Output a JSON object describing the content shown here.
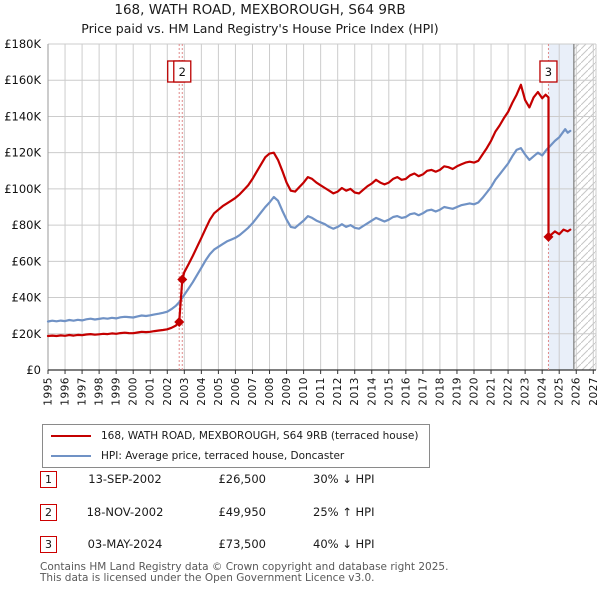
{
  "page": {
    "title1": "168, WATH ROAD, MEXBOROUGH, S64 9RB",
    "title2": "Price paid vs. HM Land Registry's House Price Index (HPI)"
  },
  "chart_data": {
    "type": "line",
    "title": "168, WATH ROAD, MEXBOROUGH, S64 9RB",
    "subtitle": "Price paid vs. HM Land Registry's House Price Index (HPI)",
    "value_units": "GBP thousands",
    "xlim": [
      1995,
      2027.2
    ],
    "ylim": [
      0,
      180
    ],
    "grid": true,
    "x_ticks": [
      1995,
      1996,
      1997,
      1998,
      1999,
      2000,
      2001,
      2002,
      2003,
      2004,
      2005,
      2006,
      2007,
      2008,
      2009,
      2010,
      2011,
      2012,
      2013,
      2014,
      2015,
      2016,
      2017,
      2018,
      2019,
      2020,
      2021,
      2022,
      2023,
      2024,
      2025,
      2026,
      2027
    ],
    "y_ticks": [
      0,
      20,
      40,
      60,
      80,
      100,
      120,
      140,
      160,
      180
    ],
    "y_tick_prefix": "£",
    "y_tick_suffix": "K",
    "colors": {
      "property_line": "#c40000",
      "hpi_line": "#7092c5",
      "grid": "#cccccc",
      "sale_vline": "#e08a8a",
      "future_shade": "#e9eff9",
      "hatch": "#c6c6c6",
      "axis": "#333333",
      "hpi_end_line": "#8a8a8a",
      "annotation_border": "#bb0000"
    },
    "future_shade_region": {
      "from": 2024.37,
      "to": 2025.86
    },
    "hpi_data_end_line": 2025.86,
    "hatch_region": {
      "from": 2025.86,
      "to": 2027.2
    },
    "sale_markers": [
      {
        "label": "1",
        "x": 2002.7,
        "value": 26.5,
        "box_dx": -3
      },
      {
        "label": "2",
        "x": 2002.88,
        "value": 49.95,
        "box_dx": 0
      },
      {
        "label": "3",
        "x": 2024.37,
        "value": 73.5,
        "box_dx": 0
      }
    ],
    "series": [
      {
        "name": "168, WATH ROAD, MEXBOROUGH, S64 9RB (terraced house)",
        "color": "#c40000",
        "points": [
          [
            1995.0,
            18.8
          ],
          [
            1995.25,
            19.0
          ],
          [
            1995.5,
            18.8
          ],
          [
            1995.75,
            19.1
          ],
          [
            1996.0,
            18.9
          ],
          [
            1996.25,
            19.3
          ],
          [
            1996.5,
            19.0
          ],
          [
            1996.75,
            19.4
          ],
          [
            1997.0,
            19.2
          ],
          [
            1997.25,
            19.6
          ],
          [
            1997.5,
            19.8
          ],
          [
            1997.75,
            19.5
          ],
          [
            1998.0,
            19.7
          ],
          [
            1998.25,
            20.0
          ],
          [
            1998.5,
            19.8
          ],
          [
            1998.75,
            20.2
          ],
          [
            1999.0,
            20.0
          ],
          [
            1999.25,
            20.4
          ],
          [
            1999.5,
            20.6
          ],
          [
            1999.75,
            20.4
          ],
          [
            2000.0,
            20.3
          ],
          [
            2000.25,
            20.7
          ],
          [
            2000.5,
            21.1
          ],
          [
            2000.75,
            20.9
          ],
          [
            2001.0,
            21.1
          ],
          [
            2001.25,
            21.5
          ],
          [
            2001.5,
            21.8
          ],
          [
            2001.75,
            22.1
          ],
          [
            2002.0,
            22.5
          ],
          [
            2002.25,
            23.3
          ],
          [
            2002.5,
            24.5
          ],
          [
            2002.7,
            26.5
          ],
          [
            2002.88,
            49.95
          ],
          [
            2003.0,
            54.0
          ],
          [
            2003.25,
            58.5
          ],
          [
            2003.5,
            63.0
          ],
          [
            2003.75,
            68.0
          ],
          [
            2004.0,
            73.0
          ],
          [
            2004.25,
            78.0
          ],
          [
            2004.5,
            83.0
          ],
          [
            2004.75,
            86.5
          ],
          [
            2005.0,
            88.5
          ],
          [
            2005.25,
            90.5
          ],
          [
            2005.5,
            92.0
          ],
          [
            2005.75,
            93.5
          ],
          [
            2006.0,
            95.0
          ],
          [
            2006.25,
            97.0
          ],
          [
            2006.5,
            99.5
          ],
          [
            2006.75,
            102.0
          ],
          [
            2007.0,
            105.5
          ],
          [
            2007.25,
            109.5
          ],
          [
            2007.5,
            113.5
          ],
          [
            2007.75,
            117.5
          ],
          [
            2008.0,
            119.5
          ],
          [
            2008.25,
            120.0
          ],
          [
            2008.5,
            116.0
          ],
          [
            2008.75,
            110.0
          ],
          [
            2009.0,
            103.5
          ],
          [
            2009.25,
            99.0
          ],
          [
            2009.5,
            98.5
          ],
          [
            2009.75,
            101.0
          ],
          [
            2010.0,
            103.5
          ],
          [
            2010.25,
            106.5
          ],
          [
            2010.5,
            105.5
          ],
          [
            2010.75,
            103.5
          ],
          [
            2011.0,
            102.0
          ],
          [
            2011.25,
            100.5
          ],
          [
            2011.5,
            99.0
          ],
          [
            2011.75,
            97.5
          ],
          [
            2012.0,
            98.5
          ],
          [
            2012.25,
            100.5
          ],
          [
            2012.5,
            99.0
          ],
          [
            2012.75,
            100.0
          ],
          [
            2013.0,
            98.0
          ],
          [
            2013.25,
            97.5
          ],
          [
            2013.5,
            99.5
          ],
          [
            2013.75,
            101.5
          ],
          [
            2014.0,
            103.0
          ],
          [
            2014.25,
            105.0
          ],
          [
            2014.5,
            103.5
          ],
          [
            2014.75,
            102.5
          ],
          [
            2015.0,
            103.5
          ],
          [
            2015.25,
            105.5
          ],
          [
            2015.5,
            106.5
          ],
          [
            2015.75,
            105.0
          ],
          [
            2016.0,
            105.5
          ],
          [
            2016.25,
            107.5
          ],
          [
            2016.5,
            108.5
          ],
          [
            2016.75,
            107.0
          ],
          [
            2017.0,
            108.0
          ],
          [
            2017.25,
            110.0
          ],
          [
            2017.5,
            110.5
          ],
          [
            2017.75,
            109.5
          ],
          [
            2018.0,
            110.5
          ],
          [
            2018.25,
            112.5
          ],
          [
            2018.5,
            112.0
          ],
          [
            2018.75,
            111.0
          ],
          [
            2019.0,
            112.5
          ],
          [
            2019.25,
            113.5
          ],
          [
            2019.5,
            114.5
          ],
          [
            2019.75,
            115.0
          ],
          [
            2020.0,
            114.5
          ],
          [
            2020.25,
            115.5
          ],
          [
            2020.5,
            119.0
          ],
          [
            2020.75,
            122.5
          ],
          [
            2021.0,
            126.5
          ],
          [
            2021.25,
            131.5
          ],
          [
            2021.5,
            135.0
          ],
          [
            2021.75,
            139.0
          ],
          [
            2022.0,
            142.5
          ],
          [
            2022.25,
            147.5
          ],
          [
            2022.5,
            152.0
          ],
          [
            2022.75,
            157.5
          ],
          [
            2023.0,
            149.0
          ],
          [
            2023.25,
            145.0
          ],
          [
            2023.5,
            150.5
          ],
          [
            2023.75,
            153.5
          ],
          [
            2024.0,
            150.0
          ],
          [
            2024.2,
            152.0
          ],
          [
            2024.37,
            150.5
          ],
          [
            2024.37,
            73.5
          ],
          [
            2024.5,
            74.5
          ],
          [
            2024.75,
            76.5
          ],
          [
            2025.0,
            75.0
          ],
          [
            2025.25,
            77.5
          ],
          [
            2025.5,
            76.5
          ],
          [
            2025.65,
            77.5
          ]
        ]
      },
      {
        "name": "HPI: Average price, terraced house, Doncaster",
        "color": "#7092c5",
        "points": [
          [
            1995.0,
            26.8
          ],
          [
            1995.25,
            27.2
          ],
          [
            1995.5,
            26.9
          ],
          [
            1995.75,
            27.3
          ],
          [
            1996.0,
            27.0
          ],
          [
            1996.25,
            27.6
          ],
          [
            1996.5,
            27.2
          ],
          [
            1996.75,
            27.7
          ],
          [
            1997.0,
            27.4
          ],
          [
            1997.25,
            28.0
          ],
          [
            1997.5,
            28.3
          ],
          [
            1997.75,
            27.9
          ],
          [
            1998.0,
            28.2
          ],
          [
            1998.25,
            28.6
          ],
          [
            1998.5,
            28.3
          ],
          [
            1998.75,
            28.8
          ],
          [
            1999.0,
            28.5
          ],
          [
            1999.25,
            29.1
          ],
          [
            1999.5,
            29.4
          ],
          [
            1999.75,
            29.2
          ],
          [
            2000.0,
            29.0
          ],
          [
            2000.25,
            29.6
          ],
          [
            2000.5,
            30.1
          ],
          [
            2000.75,
            29.8
          ],
          [
            2001.0,
            30.2
          ],
          [
            2001.25,
            30.7
          ],
          [
            2001.5,
            31.1
          ],
          [
            2001.75,
            31.6
          ],
          [
            2002.0,
            32.2
          ],
          [
            2002.25,
            33.6
          ],
          [
            2002.5,
            35.4
          ],
          [
            2002.75,
            38.0
          ],
          [
            2003.0,
            41.5
          ],
          [
            2003.25,
            45.0
          ],
          [
            2003.5,
            48.5
          ],
          [
            2003.75,
            52.5
          ],
          [
            2004.0,
            56.5
          ],
          [
            2004.25,
            60.5
          ],
          [
            2004.5,
            64.0
          ],
          [
            2004.75,
            66.5
          ],
          [
            2005.0,
            68.0
          ],
          [
            2005.25,
            69.5
          ],
          [
            2005.5,
            71.0
          ],
          [
            2005.75,
            72.0
          ],
          [
            2006.0,
            73.0
          ],
          [
            2006.25,
            74.5
          ],
          [
            2006.5,
            76.5
          ],
          [
            2006.75,
            78.5
          ],
          [
            2007.0,
            81.0
          ],
          [
            2007.25,
            84.0
          ],
          [
            2007.5,
            87.0
          ],
          [
            2007.75,
            90.0
          ],
          [
            2008.0,
            92.5
          ],
          [
            2008.25,
            95.5
          ],
          [
            2008.5,
            93.5
          ],
          [
            2008.75,
            88.0
          ],
          [
            2009.0,
            83.0
          ],
          [
            2009.25,
            79.0
          ],
          [
            2009.5,
            78.5
          ],
          [
            2009.75,
            80.5
          ],
          [
            2010.0,
            82.5
          ],
          [
            2010.25,
            85.0
          ],
          [
            2010.5,
            84.0
          ],
          [
            2010.75,
            82.5
          ],
          [
            2011.0,
            81.5
          ],
          [
            2011.25,
            80.5
          ],
          [
            2011.5,
            79.0
          ],
          [
            2011.75,
            78.0
          ],
          [
            2012.0,
            79.0
          ],
          [
            2012.25,
            80.5
          ],
          [
            2012.5,
            79.0
          ],
          [
            2012.75,
            80.0
          ],
          [
            2013.0,
            78.5
          ],
          [
            2013.25,
            78.0
          ],
          [
            2013.5,
            79.5
          ],
          [
            2013.75,
            81.0
          ],
          [
            2014.0,
            82.5
          ],
          [
            2014.25,
            84.0
          ],
          [
            2014.5,
            83.0
          ],
          [
            2014.75,
            82.0
          ],
          [
            2015.0,
            83.0
          ],
          [
            2015.25,
            84.5
          ],
          [
            2015.5,
            85.0
          ],
          [
            2015.75,
            84.0
          ],
          [
            2016.0,
            84.5
          ],
          [
            2016.25,
            86.0
          ],
          [
            2016.5,
            86.5
          ],
          [
            2016.75,
            85.5
          ],
          [
            2017.0,
            86.5
          ],
          [
            2017.25,
            88.0
          ],
          [
            2017.5,
            88.5
          ],
          [
            2017.75,
            87.5
          ],
          [
            2018.0,
            88.5
          ],
          [
            2018.25,
            90.0
          ],
          [
            2018.5,
            89.5
          ],
          [
            2018.75,
            89.0
          ],
          [
            2019.0,
            90.0
          ],
          [
            2019.25,
            91.0
          ],
          [
            2019.5,
            91.5
          ],
          [
            2019.75,
            92.0
          ],
          [
            2020.0,
            91.5
          ],
          [
            2020.25,
            92.5
          ],
          [
            2020.5,
            95.0
          ],
          [
            2020.75,
            98.0
          ],
          [
            2021.0,
            101.0
          ],
          [
            2021.25,
            105.0
          ],
          [
            2021.5,
            108.0
          ],
          [
            2021.75,
            111.0
          ],
          [
            2022.0,
            114.0
          ],
          [
            2022.25,
            118.0
          ],
          [
            2022.5,
            121.5
          ],
          [
            2022.75,
            122.5
          ],
          [
            2023.0,
            119.0
          ],
          [
            2023.25,
            116.0
          ],
          [
            2023.5,
            118.0
          ],
          [
            2023.75,
            120.0
          ],
          [
            2024.0,
            118.5
          ],
          [
            2024.25,
            121.5
          ],
          [
            2024.5,
            124.0
          ],
          [
            2024.75,
            126.5
          ],
          [
            2025.0,
            128.5
          ],
          [
            2025.2,
            131.0
          ],
          [
            2025.35,
            133.0
          ],
          [
            2025.5,
            131.0
          ],
          [
            2025.65,
            132.0
          ]
        ]
      }
    ],
    "legend_position": "bottom"
  },
  "legend": {
    "items": [
      {
        "color": "#c40000",
        "label": "168, WATH ROAD, MEXBOROUGH, S64 9RB (terraced house)"
      },
      {
        "color": "#7092c5",
        "label": "HPI: Average price, terraced house, Doncaster"
      }
    ]
  },
  "transactions": [
    {
      "num": "1",
      "date": "13-SEP-2002",
      "price": "£26,500",
      "hpi_delta": "30% ↓ HPI"
    },
    {
      "num": "2",
      "date": "18-NOV-2002",
      "price": "£49,950",
      "hpi_delta": "25% ↑ HPI"
    },
    {
      "num": "3",
      "date": "03-MAY-2024",
      "price": "£73,500",
      "hpi_delta": "40% ↓ HPI"
    }
  ],
  "footer": {
    "line1": "Contains HM Land Registry data © Crown copyright and database right 2025.",
    "line2": "This data is licensed under the Open Government Licence v3.0."
  }
}
